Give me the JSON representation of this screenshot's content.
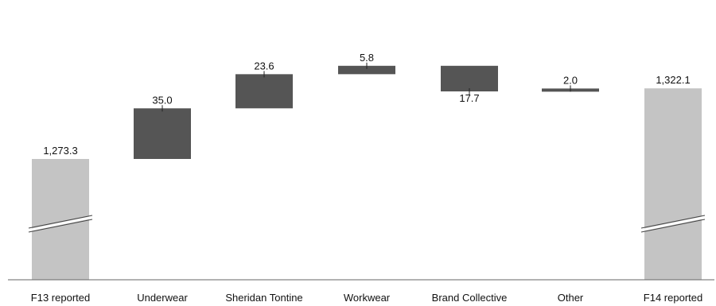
{
  "chart_data": {
    "type": "bar",
    "subtype": "waterfall",
    "title": "",
    "xlabel": "",
    "ylabel": "",
    "categories": [
      "F13 reported",
      "Underwear",
      "Sheridan Tontine",
      "Workwear",
      "Brand Collective",
      "Other",
      "F14 reported"
    ],
    "values": [
      1273.3,
      35.0,
      23.6,
      5.8,
      -17.7,
      2.0,
      1322.1
    ],
    "labels": [
      "1,273.3",
      "35.0",
      "23.6",
      "5.8",
      "17.7",
      "2.0",
      "1,322.1"
    ],
    "kinds": [
      "total",
      "delta",
      "delta",
      "delta",
      "delta",
      "delta",
      "total"
    ],
    "axis_break": true,
    "grid": false,
    "colors": {
      "total": "#c4c4c4",
      "delta": "#555555",
      "axis": "#666666"
    }
  }
}
